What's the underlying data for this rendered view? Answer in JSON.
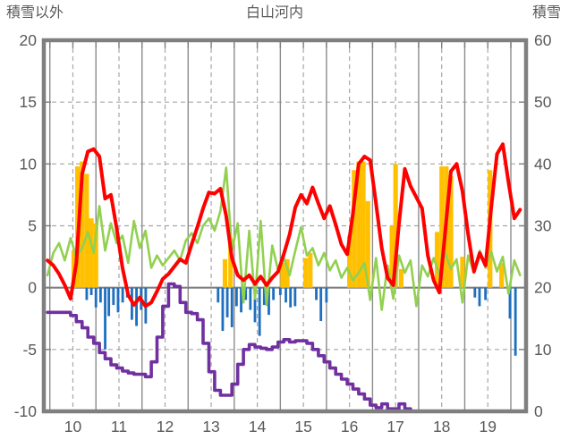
{
  "header": {
    "left_axis_title": "積雪以外",
    "title": "白山河内",
    "right_axis_title": "積雪"
  },
  "chart_data": {
    "type": "line",
    "title": "白山河内",
    "left_axis": {
      "label": "積雪以外",
      "min": -10,
      "max": 20,
      "ticks": [
        20,
        15,
        10,
        5,
        0,
        -5,
        -10
      ]
    },
    "right_axis": {
      "label": "積雪",
      "min": 0,
      "max": 60,
      "ticks": [
        60,
        50,
        40,
        30,
        20,
        10,
        0
      ]
    },
    "x_axis": {
      "labels": [
        "10",
        "11",
        "12",
        "13",
        "14",
        "15",
        "16",
        "17",
        "18",
        "19"
      ],
      "domain": [
        9.37,
        19.83
      ]
    },
    "grid": {
      "h_dashed_at": [
        15,
        10,
        5,
        -5
      ],
      "zero_line_at": 0,
      "v_dashed_at_integer_days": true,
      "v_solid_at_half_days": true
    },
    "sampling": {
      "x_start": 9.45,
      "x_step": 0.125
    },
    "series": [
      {
        "name": "red-line",
        "axis": "left",
        "color": "#FF0000",
        "width": 4,
        "values": [
          2.2,
          1.8,
          1.1,
          0.2,
          -0.9,
          2.0,
          9.2,
          11.0,
          11.2,
          10.6,
          7.2,
          7.5,
          4.8,
          1.6,
          -0.6,
          -1.4,
          -0.8,
          -1.5,
          -1.2,
          -0.3,
          0.7,
          1.1,
          1.7,
          2.3,
          2.0,
          3.5,
          4.9,
          6.4,
          7.7,
          7.6,
          8.0,
          5.8,
          2.4,
          1.0,
          0.6,
          1.0,
          0.3,
          0.9,
          0.2,
          0.8,
          1.3,
          2.7,
          4.3,
          6.5,
          7.5,
          6.8,
          8.1,
          6.8,
          5.6,
          6.6,
          5.1,
          3.5,
          2.7,
          6.0,
          10.0,
          10.6,
          10.3,
          6.8,
          3.2,
          0.8,
          0.2,
          5.2,
          9.6,
          8.2,
          7.3,
          6.4,
          2.6,
          0.6,
          -0.4,
          4.5,
          9.4,
          10.0,
          7.8,
          4.3,
          1.3,
          2.8,
          1.8,
          6.5,
          10.8,
          11.6,
          8.5,
          5.6,
          6.3
        ]
      },
      {
        "name": "green-line",
        "axis": "left",
        "color": "#92D050",
        "width": 2.6,
        "values": [
          1.0,
          2.8,
          3.6,
          2.2,
          4.0,
          2.5,
          3.2,
          4.5,
          2.8,
          6.6,
          3.0,
          5.2,
          3.6,
          4.2,
          2.0,
          5.4,
          3.2,
          4.6,
          1.6,
          2.6,
          1.8,
          2.4,
          3.0,
          2.2,
          3.8,
          4.4,
          3.6,
          5.0,
          5.6,
          4.6,
          6.2,
          9.7,
          3.0,
          5.2,
          -1.2,
          4.6,
          -0.9,
          5.4,
          -1.4,
          3.4,
          1.4,
          2.4,
          1.0,
          3.0,
          4.9,
          2.6,
          3.2,
          1.8,
          2.8,
          1.4,
          2.2,
          0.8,
          1.6,
          0.6,
          1.2,
          2.0,
          -1.0,
          2.4,
          -1.8,
          1.8,
          -0.9,
          2.6,
          1.2,
          2.2,
          -1.5,
          1.8,
          0.9,
          2.4,
          1.1,
          2.8,
          1.5,
          2.3,
          -1.2,
          2.6,
          1.2,
          3.0,
          1.6,
          2.9,
          1.3,
          2.5,
          -0.5,
          2.2,
          1.0
        ]
      },
      {
        "name": "snow-depth-line",
        "axis": "right",
        "color": "#7030A0",
        "width": 3.6,
        "step": true,
        "values": [
          16,
          16,
          16,
          16,
          15.5,
          14.5,
          13.5,
          12,
          11,
          9.5,
          8.5,
          7.5,
          7,
          6.5,
          6.2,
          6,
          6,
          5.6,
          8,
          12,
          17,
          20.6,
          20.2,
          17.6,
          16,
          15.8,
          14.8,
          11,
          6.4,
          3.4,
          2.6,
          2.6,
          4.4,
          7.6,
          10,
          10.8,
          10.4,
          10.2,
          10,
          10.4,
          11.2,
          11.6,
          11.2,
          11.4,
          11.4,
          11,
          10,
          9,
          8,
          7,
          6,
          5.2,
          4.4,
          3.6,
          2.8,
          2,
          1,
          0.6,
          1.2,
          0.4,
          0.4,
          1.2,
          0.4,
          0,
          0,
          0,
          0,
          0,
          0,
          0,
          0,
          0,
          0,
          0,
          0,
          0,
          0,
          0,
          0,
          0,
          0,
          0,
          0
        ]
      }
    ],
    "bars": [
      {
        "name": "orange-bars",
        "axis": "left",
        "color": "#FFC000",
        "width_days": 0.1,
        "baseline": 0,
        "direction": "up",
        "points": [
          [
            10.02,
            3.0
          ],
          [
            10.1,
            9.8
          ],
          [
            10.2,
            10.2
          ],
          [
            10.3,
            9.2
          ],
          [
            10.4,
            5.6
          ],
          [
            10.5,
            5.2
          ],
          [
            13.3,
            2.3
          ],
          [
            13.42,
            4.0
          ],
          [
            14.55,
            2.0
          ],
          [
            14.65,
            2.3
          ],
          [
            15.05,
            2.4
          ],
          [
            15.15,
            2.8
          ],
          [
            16.0,
            4.2
          ],
          [
            16.1,
            9.5
          ],
          [
            16.2,
            10.2
          ],
          [
            16.3,
            10.2
          ],
          [
            16.4,
            7.0
          ],
          [
            16.92,
            5.0
          ],
          [
            17.0,
            10.0
          ],
          [
            17.12,
            1.5
          ],
          [
            17.9,
            4.5
          ],
          [
            18.0,
            9.8
          ],
          [
            18.1,
            9.8
          ],
          [
            18.2,
            9.0
          ],
          [
            18.45,
            2.5
          ],
          [
            19.05,
            9.5
          ],
          [
            19.3,
            2.0
          ]
        ]
      },
      {
        "name": "blue-bars",
        "axis": "left",
        "color": "#1F6FC0",
        "width_days": 0.055,
        "baseline": 0,
        "direction": "down",
        "points": [
          [
            10.3,
            1.0
          ],
          [
            10.4,
            0.6
          ],
          [
            10.5,
            1.6
          ],
          [
            10.6,
            1.2
          ],
          [
            10.7,
            5.0
          ],
          [
            10.78,
            2.3
          ],
          [
            10.88,
            1.4
          ],
          [
            10.98,
            2.0
          ],
          [
            11.08,
            1.2
          ],
          [
            11.18,
            0.8
          ],
          [
            11.28,
            2.6
          ],
          [
            11.38,
            3.1
          ],
          [
            11.48,
            1.8
          ],
          [
            11.58,
            2.9
          ],
          [
            13.15,
            1.2
          ],
          [
            13.25,
            3.5
          ],
          [
            13.35,
            2.4
          ],
          [
            13.45,
            3.2
          ],
          [
            13.55,
            1.5
          ],
          [
            13.65,
            2.0
          ],
          [
            13.75,
            1.0
          ],
          [
            13.85,
            1.8
          ],
          [
            13.95,
            2.8
          ],
          [
            14.05,
            3.9
          ],
          [
            14.15,
            1.4
          ],
          [
            14.25,
            2.2
          ],
          [
            14.35,
            1.0
          ],
          [
            14.5,
            0.6
          ],
          [
            14.62,
            1.2
          ],
          [
            14.72,
            1.6
          ],
          [
            14.82,
            1.5
          ],
          [
            15.28,
            1.0
          ],
          [
            15.38,
            2.7
          ],
          [
            15.5,
            1.2
          ],
          [
            18.72,
            0.8
          ],
          [
            18.82,
            1.5
          ],
          [
            18.95,
            1.0
          ],
          [
            19.48,
            2.5
          ],
          [
            19.6,
            5.5
          ]
        ]
      }
    ],
    "colors": {
      "frame": "#7F7F7F",
      "grid_dashed": "#A6A6A6",
      "grid_solid": "#8C8C8C",
      "zero_line": "#808080",
      "tick_text": "#595959"
    }
  }
}
